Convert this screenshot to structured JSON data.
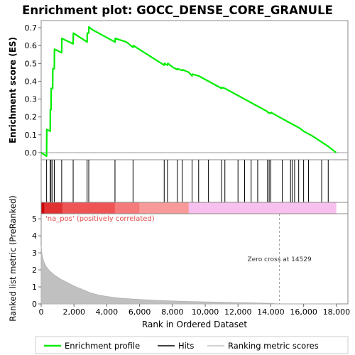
{
  "chart_data": {
    "type": "line",
    "title": "Enrichment plot: GOCC_DENSE_CORE_GRANULE",
    "xlabel": "Rank in Ordered Dataset",
    "top_panel": {
      "ylabel": "Enrichment score (ES)",
      "ylim": [
        -0.04,
        0.74
      ],
      "yticks": [
        "0.0",
        "0.1",
        "0.2",
        "0.3",
        "0.4",
        "0.5",
        "0.6",
        "0.7"
      ],
      "series": [
        {
          "name": "Enrichment profile",
          "color": "#00ee00",
          "x": [
            0,
            330,
            340,
            550,
            560,
            600,
            610,
            700,
            710,
            800,
            810,
            1250,
            1260,
            1950,
            1960,
            2800,
            2810,
            2900,
            2910,
            3100,
            4500,
            4520,
            5200,
            5600,
            5620,
            7500,
            7520,
            7700,
            7720,
            8000,
            8300,
            8320,
            8600,
            8620,
            9000,
            9200,
            9220,
            9600,
            9800,
            10200,
            11000,
            11020,
            11200,
            12000,
            12400,
            12800,
            13200,
            13800,
            13820,
            14000,
            14020,
            14500,
            14700,
            15000,
            15200,
            15400,
            15600,
            15800,
            16000,
            16200,
            16500,
            17000,
            17500,
            17980
          ],
          "y": [
            0.0,
            -0.02,
            0.13,
            0.12,
            0.24,
            0.24,
            0.36,
            0.36,
            0.47,
            0.47,
            0.58,
            0.56,
            0.64,
            0.61,
            0.67,
            0.62,
            0.67,
            0.67,
            0.705,
            0.69,
            0.62,
            0.64,
            0.62,
            0.59,
            0.6,
            0.49,
            0.5,
            0.49,
            0.5,
            0.48,
            0.465,
            0.47,
            0.46,
            0.465,
            0.45,
            0.43,
            0.44,
            0.43,
            0.42,
            0.4,
            0.36,
            0.365,
            0.36,
            0.32,
            0.3,
            0.28,
            0.26,
            0.23,
            0.225,
            0.22,
            0.225,
            0.2,
            0.19,
            0.175,
            0.165,
            0.155,
            0.145,
            0.135,
            0.12,
            0.11,
            0.095,
            0.065,
            0.035,
            0.0
          ]
        }
      ]
    },
    "hits": {
      "name": "Hits",
      "x": [
        330,
        550,
        600,
        700,
        800,
        1250,
        1950,
        2800,
        2900,
        4500,
        5600,
        7500,
        7700,
        8300,
        8600,
        9200,
        9600,
        10200,
        11000,
        11200,
        12000,
        12400,
        12800,
        13200,
        13800,
        13900,
        14000,
        14700,
        15200,
        15300,
        15450,
        15700,
        16000,
        16300,
        17100,
        17500
      ]
    },
    "correlation_bar": {
      "positive_label": "'na_pos' (positively correlated)",
      "zero_cross": 14529
    },
    "bottom_panel": {
      "ylabel": "Ranked list metric (PreRanked)",
      "ylim": [
        0,
        5.3
      ],
      "yticks": [
        "0",
        "1",
        "2",
        "3",
        "4",
        "5"
      ],
      "xlim": [
        0,
        18700
      ],
      "xticks": [
        "0",
        "2,000",
        "4,000",
        "6,000",
        "8,000",
        "10,000",
        "12,000",
        "14,000",
        "16,000",
        "18,000"
      ],
      "xtick_values": [
        0,
        2000,
        4000,
        6000,
        8000,
        10000,
        12000,
        14000,
        16000,
        18000
      ],
      "zero_cross_label": "Zero cross at 14529",
      "series": [
        {
          "name": "Ranking metric scores",
          "color": "#c0c0c0",
          "x": [
            0,
            50,
            150,
            300,
            500,
            800,
            1200,
            1600,
            2000,
            2500,
            3000,
            3500,
            4000,
            4500,
            5000,
            6000,
            7000,
            8000,
            9000,
            10000,
            11000,
            12000,
            13000,
            14000,
            14529,
            15000,
            16000,
            17000,
            18000
          ],
          "y": [
            3.4,
            2.9,
            2.5,
            2.2,
            1.95,
            1.7,
            1.45,
            1.25,
            1.05,
            0.85,
            0.65,
            0.52,
            0.44,
            0.37,
            0.32,
            0.26,
            0.21,
            0.17,
            0.14,
            0.12,
            0.1,
            0.08,
            0.06,
            0.03,
            0.0,
            0.0,
            0.0,
            0.0,
            0.0
          ]
        }
      ]
    },
    "legend": {
      "placement": "bottom",
      "items": [
        {
          "label": "Enrichment profile",
          "color": "#00ee00",
          "kind": "line"
        },
        {
          "label": "Hits",
          "color": "#000000",
          "kind": "line"
        },
        {
          "label": "Ranking metric scores",
          "color": "#c0c0c0",
          "kind": "line"
        }
      ]
    }
  }
}
